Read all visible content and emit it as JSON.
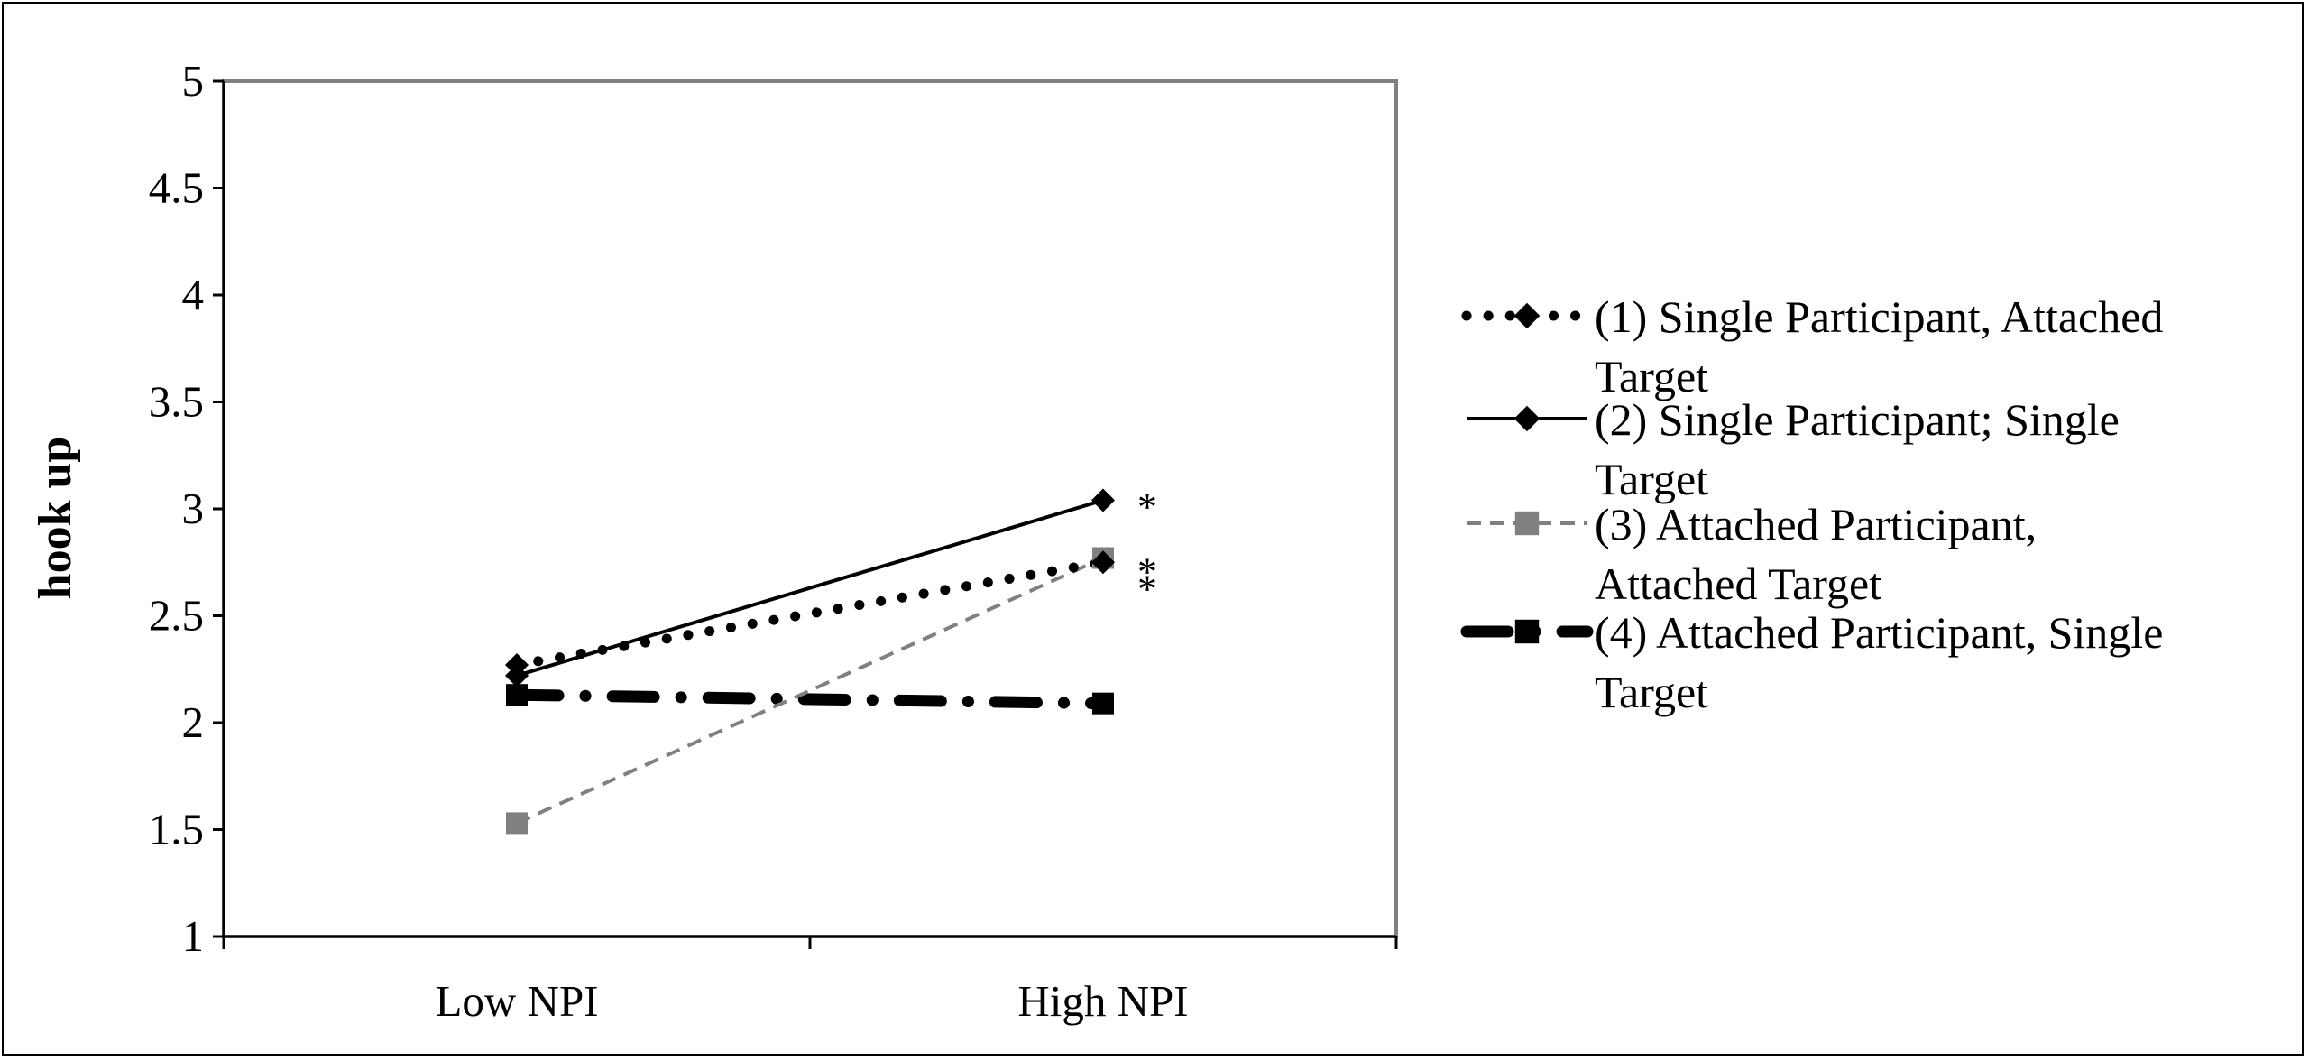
{
  "chart_data": {
    "type": "line",
    "title": "",
    "xlabel": "",
    "ylabel": "hook up",
    "categories": [
      "Low NPI",
      "High NPI"
    ],
    "ylim": [
      1,
      5
    ],
    "yticks": [
      "1",
      "1.5",
      "2",
      "2.5",
      "3",
      "3.5",
      "4",
      "4.5",
      "5"
    ],
    "grid": false,
    "legend_position": "right",
    "series": [
      {
        "name": "(1) Single Participant, Attached Target",
        "values": [
          2.27,
          2.75
        ],
        "color": "#000000",
        "line_style": "dotted",
        "marker": "diamond"
      },
      {
        "name": "(2) Single Participant; Single Target",
        "values": [
          2.22,
          3.04
        ],
        "color": "#000000",
        "line_style": "solid",
        "marker": "diamond"
      },
      {
        "name": "(3) Attached Participant, Attached Target",
        "values": [
          1.53,
          2.77
        ],
        "color": "#808080",
        "line_style": "dashed",
        "marker": "square"
      },
      {
        "name": "(4) Attached Participant, Single Target",
        "values": [
          2.13,
          2.09
        ],
        "color": "#000000",
        "line_style": "dash-dot",
        "marker": "square"
      }
    ],
    "annotations": [
      {
        "text": "*",
        "series": 1,
        "category": "High NPI"
      },
      {
        "text": "*",
        "series": 2,
        "category": "High NPI"
      },
      {
        "text": "*",
        "series": 0,
        "category": "High NPI"
      }
    ],
    "legend_lines": [
      [
        "(1) Single Participant, Attached",
        "Target"
      ],
      [
        "(2) Single Participant; Single",
        "Target"
      ],
      [
        "(3) Attached Participant,",
        "Attached Target"
      ],
      [
        "(4) Attached Participant, Single",
        "Target"
      ]
    ]
  }
}
